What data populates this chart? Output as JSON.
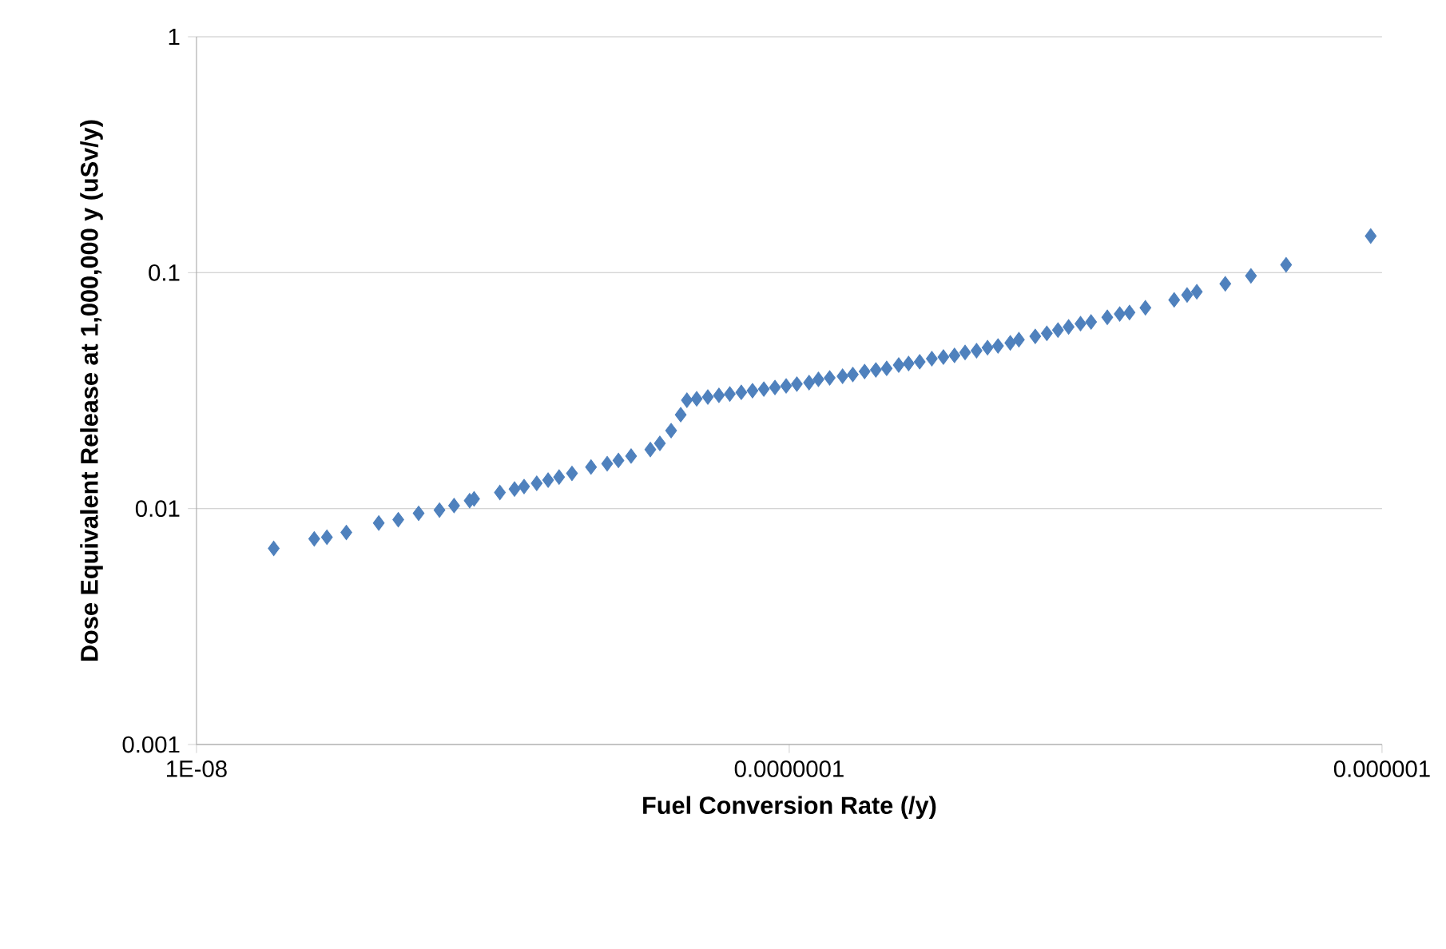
{
  "chart_data": {
    "type": "scatter",
    "xlabel": "Fuel Conversion Rate (/y)",
    "ylabel": "Dose Equivalent Release at 1,000,000 y  (uSv/y)",
    "log": "xy",
    "grid": "y",
    "marker": "diamond",
    "color": "#4f81bd",
    "xlim": [
      1e-08,
      1e-06
    ],
    "ylim": [
      0.001,
      1
    ],
    "xticks": [
      {
        "value": 1e-08,
        "label": "1E-08"
      },
      {
        "value": 1e-07,
        "label": "0.0000001"
      },
      {
        "value": 1e-06,
        "label": "0.000001"
      }
    ],
    "yticks": [
      {
        "value": 0.001,
        "label": "0.001"
      },
      {
        "value": 0.01,
        "label": "0.01"
      },
      {
        "value": 0.1,
        "label": "0.1"
      },
      {
        "value": 1,
        "label": "1"
      }
    ],
    "x": [
      1.35e-08,
      1.58e-08,
      1.66e-08,
      1.79e-08,
      2.03e-08,
      2.19e-08,
      2.37e-08,
      2.57e-08,
      2.72e-08,
      2.89e-08,
      2.94e-08,
      3.25e-08,
      3.44e-08,
      3.57e-08,
      3.75e-08,
      3.92e-08,
      4.09e-08,
      4.3e-08,
      4.63e-08,
      4.93e-08,
      5.15e-08,
      5.41e-08,
      5.83e-08,
      6.05e-08,
      6.32e-08,
      6.56e-08,
      6.72e-08,
      6.98e-08,
      7.29e-08,
      7.61e-08,
      7.94e-08,
      8.3e-08,
      8.67e-08,
      9.06e-08,
      9.46e-08,
      9.88e-08,
      1.03e-07,
      1.08e-07,
      1.12e-07,
      1.17e-07,
      1.23e-07,
      1.28e-07,
      1.34e-07,
      1.4e-07,
      1.46e-07,
      1.53e-07,
      1.59e-07,
      1.66e-07,
      1.74e-07,
      1.82e-07,
      1.9e-07,
      1.98e-07,
      2.07e-07,
      2.16e-07,
      2.25e-07,
      2.36e-07,
      2.44e-07,
      2.6e-07,
      2.72e-07,
      2.84e-07,
      2.96e-07,
      3.1e-07,
      3.23e-07,
      3.44e-07,
      3.61e-07,
      3.75e-07,
      3.99e-07,
      4.46e-07,
      4.69e-07,
      4.87e-07,
      5.44e-07,
      6.01e-07,
      6.89e-07,
      9.57e-07
    ],
    "values": [
      0.00678,
      0.00744,
      0.00756,
      0.00792,
      0.00869,
      0.00897,
      0.00955,
      0.00985,
      0.0103,
      0.0108,
      0.011,
      0.0117,
      0.0121,
      0.0124,
      0.0128,
      0.0132,
      0.0136,
      0.0141,
      0.015,
      0.0155,
      0.016,
      0.0167,
      0.0178,
      0.0189,
      0.0214,
      0.025,
      0.0288,
      0.0292,
      0.0297,
      0.0302,
      0.0306,
      0.0311,
      0.0316,
      0.0321,
      0.0326,
      0.0331,
      0.0337,
      0.0342,
      0.0353,
      0.0358,
      0.0364,
      0.037,
      0.0381,
      0.0387,
      0.0393,
      0.0406,
      0.0412,
      0.0419,
      0.0432,
      0.0439,
      0.0446,
      0.0459,
      0.0467,
      0.0481,
      0.0489,
      0.0504,
      0.052,
      0.0537,
      0.0553,
      0.0571,
      0.0589,
      0.0608,
      0.0618,
      0.0647,
      0.0668,
      0.0678,
      0.071,
      0.0767,
      0.0804,
      0.083,
      0.0897,
      0.0969,
      0.108,
      0.143
    ]
  }
}
